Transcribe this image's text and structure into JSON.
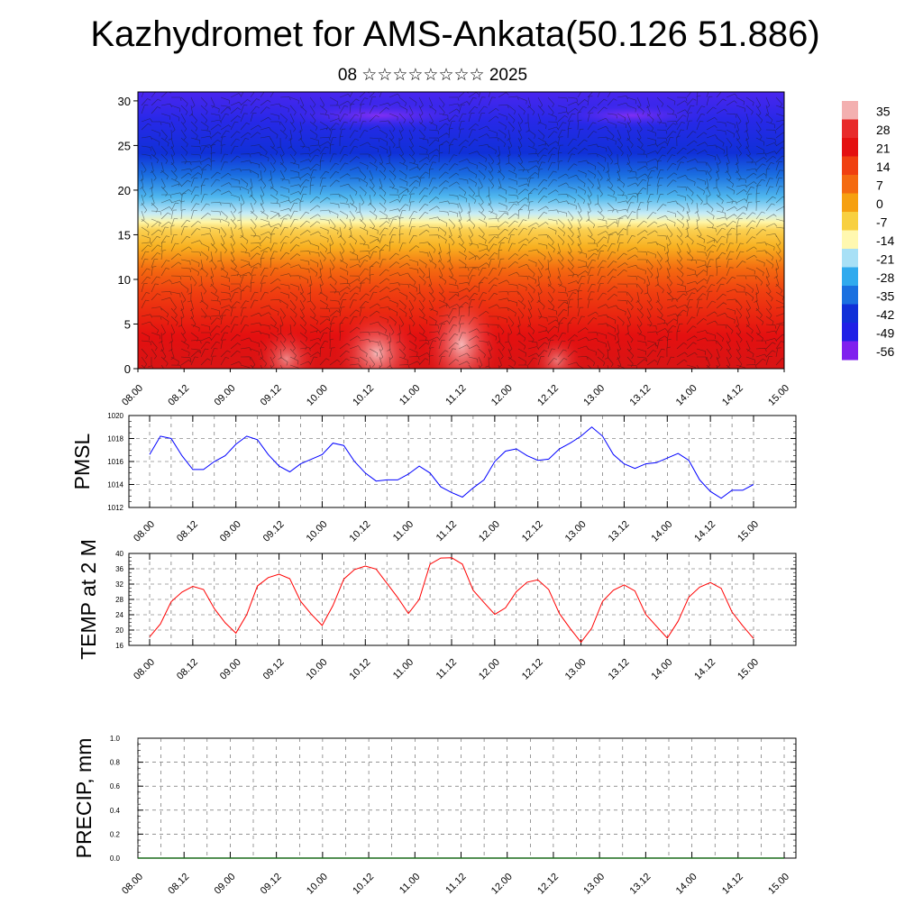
{
  "header": {
    "title": "Kazhydromet for AMS-Ankata(50.126 51.886)",
    "subtitle": "08 ☆☆☆☆☆☆☆☆ 2025"
  },
  "colors": {
    "pmsl_line": "#0000ff",
    "temp_line": "#ff0000",
    "precip_line": "#1a6b1a",
    "grid": "#555555"
  },
  "chart_data": [
    {
      "type": "heatmap",
      "name": "cross-section",
      "title": "",
      "xlabel": "",
      "ylabel": "",
      "x_ticks": [
        "08.00",
        "08.12",
        "09.00",
        "09.12",
        "10.00",
        "10.12",
        "11.00",
        "11.12",
        "12.00",
        "12.12",
        "13.00",
        "13.12",
        "14.00",
        "14.12",
        "15.00"
      ],
      "y_ticks": [
        0,
        5,
        10,
        15,
        20,
        25,
        30
      ],
      "ylim": [
        0,
        31
      ],
      "overlay": "wind barbs and streamlines",
      "colorbar": {
        "labels": [
          "35",
          "28",
          "21",
          "14",
          "7",
          "0",
          "-7",
          "-14",
          "-21",
          "-28",
          "-35",
          "-42",
          "-49",
          "-56"
        ],
        "colors": [
          "#f3b0b0",
          "#e82a2a",
          "#e41010",
          "#f04010",
          "#f46a10",
          "#f6a010",
          "#f8d040",
          "#fff8b0",
          "#a8e0f6",
          "#30aaee",
          "#1a70e0",
          "#1030d8",
          "#2020e6",
          "#8020ee"
        ]
      },
      "field_description": "temperature (°C) by height (km) and time"
    },
    {
      "type": "line",
      "name": "PMSL",
      "ylabel": "PMSL",
      "ylim": [
        1012,
        1020
      ],
      "y_ticks": [
        1012,
        1014,
        1016,
        1018,
        1020
      ],
      "x_ticks": [
        "08.00",
        "08.12",
        "09.00",
        "09.12",
        "10.00",
        "10.12",
        "11.00",
        "11.12",
        "12.00",
        "12.12",
        "13.00",
        "13.12",
        "14.00",
        "14.12",
        "15.00"
      ],
      "values": [
        1016.6,
        1018.2,
        1018.0,
        1016.5,
        1015.3,
        1015.3,
        1016.0,
        1016.5,
        1017.5,
        1018.2,
        1017.9,
        1016.6,
        1015.6,
        1015.1,
        1015.8,
        1016.2,
        1016.6,
        1017.6,
        1017.4,
        1016.0,
        1015.0,
        1014.3,
        1014.4,
        1014.4,
        1014.9,
        1015.6,
        1015.0,
        1013.8,
        1013.3,
        1012.9,
        1013.7,
        1014.4,
        1016.0,
        1016.9,
        1017.1,
        1016.5,
        1016.1,
        1016.2,
        1017.1,
        1017.6,
        1018.2,
        1019.0,
        1018.2,
        1016.6,
        1015.8,
        1015.4,
        1015.8,
        1015.9,
        1016.3,
        1016.7,
        1016.1,
        1014.4,
        1013.4,
        1012.8,
        1013.5,
        1013.5,
        1014.0
      ]
    },
    {
      "type": "line",
      "name": "TEMP at 2 M",
      "ylabel": "TEMP at 2 M",
      "ylim": [
        16,
        40
      ],
      "y_ticks": [
        16,
        20,
        24,
        28,
        32,
        36,
        40
      ],
      "x_ticks": [
        "08.00",
        "08.12",
        "09.00",
        "09.12",
        "10.00",
        "10.12",
        "11.00",
        "11.12",
        "12.00",
        "12.12",
        "13.00",
        "13.12",
        "14.00",
        "14.12",
        "15.00"
      ],
      "values": [
        18.2,
        21.6,
        27.4,
        29.9,
        31.4,
        30.6,
        25.6,
        21.9,
        19.2,
        24.0,
        31.5,
        33.7,
        34.6,
        33.4,
        27.5,
        24.1,
        21.2,
        26.4,
        33.3,
        35.8,
        36.7,
        35.9,
        32.2,
        28.5,
        24.3,
        28.0,
        37.2,
        38.8,
        38.9,
        37.2,
        30.4,
        27.2,
        24.1,
        25.8,
        30.0,
        32.5,
        33.1,
        30.6,
        24.3,
        20.4,
        16.8,
        20.5,
        27.5,
        30.4,
        31.8,
        30.2,
        24.1,
        21.0,
        17.9,
        22.3,
        28.6,
        31.2,
        32.4,
        30.9,
        24.7,
        21.1,
        17.8
      ]
    },
    {
      "type": "line",
      "name": "PRECIP, mm",
      "ylabel": "PRECIP, mm",
      "ylim": [
        0,
        1
      ],
      "y_ticks": [
        "0.0",
        "0.2",
        "0.4",
        "0.6",
        "0.8",
        "1.0"
      ],
      "x_ticks": [
        "08.00",
        "08.12",
        "09.00",
        "09.12",
        "10.00",
        "10.12",
        "11.00",
        "11.12",
        "12.00",
        "12.12",
        "13.00",
        "13.12",
        "14.00",
        "14.12",
        "15.00"
      ],
      "values": [
        0,
        0,
        0,
        0,
        0,
        0,
        0,
        0,
        0,
        0,
        0,
        0,
        0,
        0,
        0,
        0,
        0,
        0,
        0,
        0,
        0,
        0,
        0,
        0,
        0,
        0,
        0,
        0,
        0,
        0,
        0,
        0,
        0,
        0,
        0,
        0,
        0,
        0,
        0,
        0,
        0,
        0,
        0,
        0,
        0,
        0,
        0,
        0,
        0,
        0,
        0,
        0,
        0,
        0,
        0,
        0,
        0
      ]
    }
  ]
}
